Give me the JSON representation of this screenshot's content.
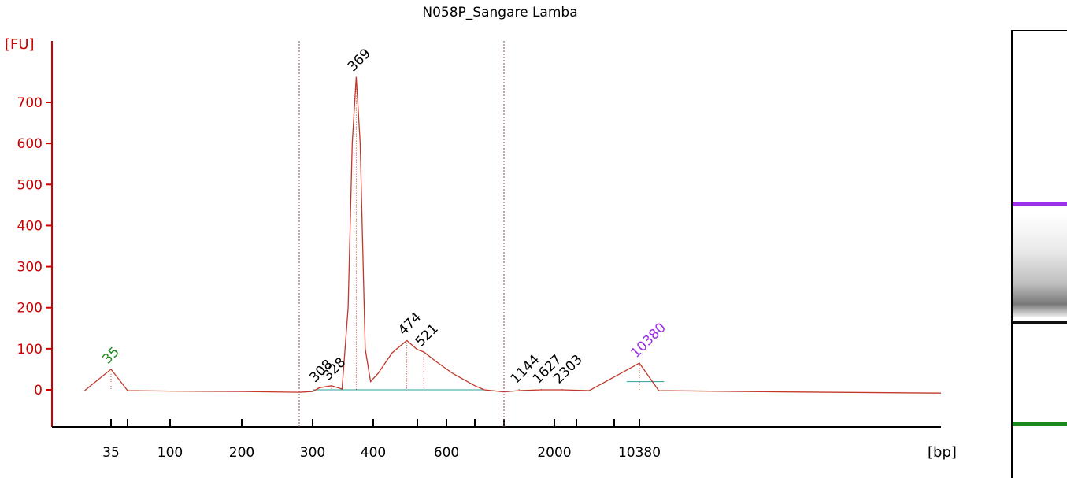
{
  "title": "N058P_Sangare Lamba",
  "colors": {
    "trace": "#c0392b",
    "axis": "#cc0000",
    "peak_label": "#000000",
    "lower_marker": "#1a8a1a",
    "upper_marker": "#9b30e6",
    "baseline": "#2aa198"
  },
  "chart_data": {
    "type": "line",
    "title": "N058P_Sangare Lamba",
    "ylabel": "[FU]",
    "xlabel": "[bp]",
    "ylim": [
      -90,
      830
    ],
    "y_ticks": [
      0,
      100,
      200,
      300,
      400,
      500,
      600,
      700
    ],
    "x_tick_labels": [
      "35",
      "100",
      "200",
      "300",
      "400",
      "600",
      "2000",
      "10380"
    ],
    "grid": false,
    "series": [
      {
        "points_bp": [
          [
            20,
            -2
          ],
          [
            35,
            50
          ],
          [
            60,
            -2
          ],
          [
            100,
            -3
          ],
          [
            200,
            -4
          ],
          [
            280,
            -6
          ],
          [
            300,
            -4
          ],
          [
            310,
            5
          ],
          [
            328,
            10
          ],
          [
            345,
            2
          ],
          [
            355,
            200
          ],
          [
            362,
            600
          ],
          [
            369,
            762
          ],
          [
            376,
            600
          ],
          [
            385,
            100
          ],
          [
            395,
            20
          ],
          [
            410,
            40
          ],
          [
            440,
            90
          ],
          [
            474,
            120
          ],
          [
            500,
            98
          ],
          [
            521,
            92
          ],
          [
            560,
            70
          ],
          [
            620,
            40
          ],
          [
            700,
            10
          ],
          [
            760,
            0
          ],
          [
            900,
            -5
          ],
          [
            1144,
            -2
          ],
          [
            1627,
            0
          ],
          [
            2303,
            0
          ],
          [
            4000,
            -2
          ],
          [
            10380,
            65
          ],
          [
            12000,
            -2
          ],
          [
            30000,
            -5
          ],
          [
            100000,
            -8
          ]
        ]
      }
    ],
    "peaks": [
      {
        "label": "35",
        "bp": 35,
        "fu": 50,
        "kind": "lower_marker"
      },
      {
        "label": "308",
        "bp": 308,
        "fu": 5,
        "kind": "peak"
      },
      {
        "label": "328",
        "bp": 328,
        "fu": 10,
        "kind": "peak"
      },
      {
        "label": "369",
        "bp": 369,
        "fu": 762,
        "kind": "peak"
      },
      {
        "label": "474",
        "bp": 474,
        "fu": 120,
        "kind": "peak"
      },
      {
        "label": "521",
        "bp": 521,
        "fu": 92,
        "kind": "peak"
      },
      {
        "label": "1144",
        "bp": 1144,
        "fu": 2,
        "kind": "peak"
      },
      {
        "label": "1627",
        "bp": 1627,
        "fu": 2,
        "kind": "peak"
      },
      {
        "label": "2303",
        "bp": 2303,
        "fu": 2,
        "kind": "peak"
      },
      {
        "label": "10380",
        "bp": 10380,
        "fu": 65,
        "kind": "upper_marker"
      }
    ],
    "region_lines_bp": [
      280,
      900
    ]
  }
}
